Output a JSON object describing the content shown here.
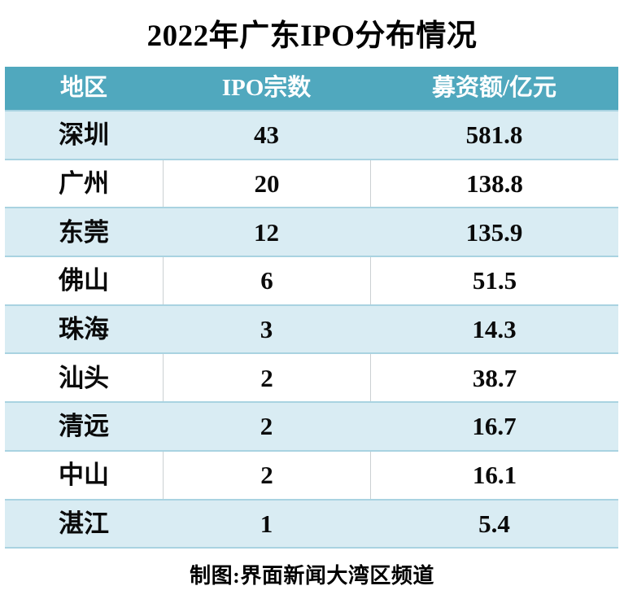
{
  "title": "2022年广东IPO分布情况",
  "table": {
    "columns": [
      "地区",
      "IPO宗数",
      "募资额/亿元"
    ],
    "rows": [
      {
        "region": "深圳",
        "ipo_count": "43",
        "amount": "581.8"
      },
      {
        "region": "广州",
        "ipo_count": "20",
        "amount": "138.8"
      },
      {
        "region": "东莞",
        "ipo_count": "12",
        "amount": "135.9"
      },
      {
        "region": "佛山",
        "ipo_count": "6",
        "amount": "51.5"
      },
      {
        "region": "珠海",
        "ipo_count": "3",
        "amount": "14.3"
      },
      {
        "region": "汕头",
        "ipo_count": "2",
        "amount": "38.7"
      },
      {
        "region": "清远",
        "ipo_count": "2",
        "amount": "16.7"
      },
      {
        "region": "中山",
        "ipo_count": "2",
        "amount": "16.1"
      },
      {
        "region": "湛江",
        "ipo_count": "1",
        "amount": "5.4"
      }
    ]
  },
  "footer": {
    "credit": "制图:界面新闻大湾区频道"
  },
  "colors": {
    "header_bg": "#50a8be",
    "band_blue": "#d9ecf3",
    "row_border": "#a9d3e1",
    "column_separator": "#cbd0d3",
    "header_text": "#ffffff",
    "body_text": "#0a0a0a"
  },
  "chart_data": {
    "type": "table",
    "title": "2022年广东IPO分布情况",
    "columns": [
      "地区",
      "IPO宗数",
      "募资额/亿元"
    ],
    "rows": [
      [
        "深圳",
        43,
        581.8
      ],
      [
        "广州",
        20,
        138.8
      ],
      [
        "东莞",
        12,
        135.9
      ],
      [
        "佛山",
        6,
        51.5
      ],
      [
        "珠海",
        3,
        14.3
      ],
      [
        "汕头",
        2,
        38.7
      ],
      [
        "清远",
        2,
        16.7
      ],
      [
        "中山",
        2,
        16.1
      ],
      [
        "湛江",
        1,
        5.4
      ]
    ],
    "source_note": "制图:界面新闻大湾区频道"
  }
}
